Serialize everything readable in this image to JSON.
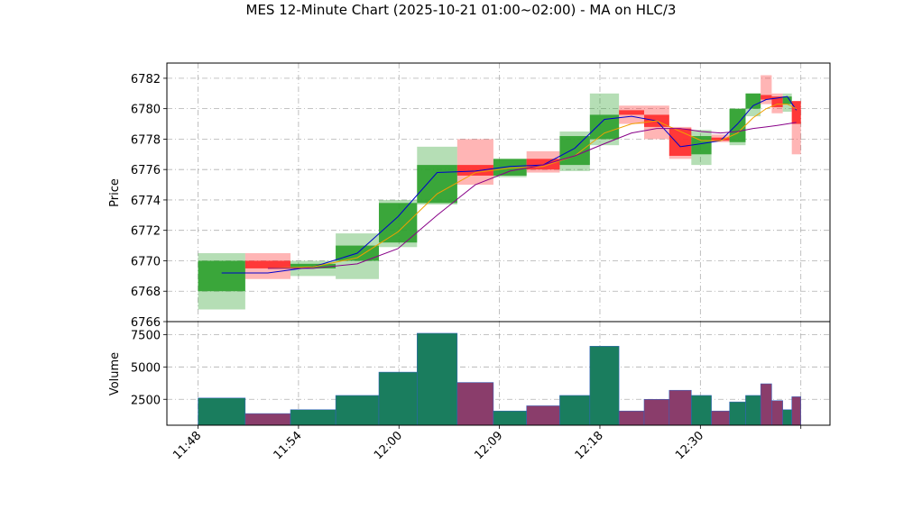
{
  "chart_data": {
    "type": "candlestick",
    "title": "MES 12-Minute Chart (2025-10-21 01:00~02:00) - MA on HLC/3",
    "grid": true,
    "x_edges": [
      0,
      0.47,
      0.92,
      1.37,
      1.8,
      2.18,
      2.58,
      2.94,
      3.27,
      3.6,
      3.9,
      4.19,
      4.44,
      4.69,
      4.91,
      5.11,
      5.29,
      5.45,
      5.6,
      5.71,
      5.82,
      5.91,
      6.0
    ],
    "xlim": [
      -0.31,
      6.29
    ],
    "xticks": [
      {
        "value": 0,
        "label": "11:48"
      },
      {
        "value": 1,
        "label": "11:54"
      },
      {
        "value": 2,
        "label": "12:00"
      },
      {
        "value": 3,
        "label": "12:09"
      },
      {
        "value": 4,
        "label": "12:18"
      },
      {
        "value": 5,
        "label": "12:30"
      },
      {
        "value": 6,
        "label": null
      }
    ],
    "price": {
      "ylabel": "Price",
      "ylim": [
        6766,
        6783
      ],
      "yticks": [
        6766,
        6768,
        6770,
        6772,
        6774,
        6776,
        6778,
        6780,
        6782
      ],
      "up_color": "#2ca02c",
      "down_color": "#ff2a2a",
      "open": [
        6768.0,
        6770.0,
        6769.5,
        6770.0,
        6771.2,
        6773.8,
        6776.3,
        6775.6,
        6776.7,
        6776.3,
        6778.0,
        6779.9,
        6779.6,
        6778.7,
        6777.0,
        6778.1,
        6777.8,
        6780.0,
        6780.9,
        6780.8,
        6780.3,
        6780.5
      ],
      "high": [
        6770.5,
        6770.5,
        6770.0,
        6771.8,
        6774.0,
        6777.5,
        6778.0,
        6776.7,
        6777.2,
        6778.5,
        6781.0,
        6780.2,
        6780.2,
        6778.8,
        6778.6,
        6778.3,
        6780.0,
        6781.0,
        6782.2,
        6781.0,
        6781.0,
        6780.5
      ],
      "low": [
        6766.8,
        6768.8,
        6769.0,
        6768.8,
        6770.9,
        6773.7,
        6775.0,
        6775.5,
        6775.8,
        6775.9,
        6777.6,
        6779.0,
        6778.0,
        6776.7,
        6776.3,
        6777.8,
        6777.6,
        6779.5,
        6780.3,
        6779.7,
        6779.8,
        6777.0
      ],
      "close": [
        6770.0,
        6769.5,
        6769.8,
        6771.0,
        6773.8,
        6776.3,
        6775.6,
        6776.7,
        6776.0,
        6778.2,
        6779.6,
        6779.6,
        6778.8,
        6776.9,
        6778.2,
        6777.9,
        6780.0,
        6781.0,
        6780.6,
        6780.1,
        6780.8,
        6779.0
      ],
      "series": [
        {
          "color": "#0000cc",
          "values": [
            6769.2,
            6769.2,
            6769.6,
            6770.5,
            6772.9,
            6775.8,
            6775.9,
            6776.2,
            6776.3,
            6777.4,
            6779.3,
            6779.5,
            6779.2,
            6777.5,
            6777.7,
            6777.9,
            6779.0,
            6780.2,
            6780.6,
            6780.7,
            6780.8,
            6779.9
          ]
        },
        {
          "color": "#f0a000",
          "values": [
            null,
            6769.5,
            6769.6,
            6770.2,
            6771.9,
            6774.4,
            6775.8,
            6776.1,
            6776.2,
            6776.9,
            6778.4,
            6779.0,
            6779.2,
            6778.5,
            6777.9,
            6777.9,
            6778.4,
            6779.4,
            6780.0,
            6780.3,
            6780.3,
            6780.0
          ]
        },
        {
          "color": "#880088",
          "values": [
            null,
            6769.5,
            6769.5,
            6769.8,
            6770.8,
            6773.0,
            6775.0,
            6775.9,
            6776.3,
            6776.9,
            6777.7,
            6778.4,
            6778.7,
            6778.7,
            6778.5,
            6778.4,
            6778.5,
            6778.7,
            6778.8,
            6778.9,
            6779.0,
            6779.1
          ]
        }
      ]
    },
    "volume": {
      "ylabel": "Volume",
      "ylim": [
        500,
        8500
      ],
      "yticks": [
        2500,
        5000,
        7500
      ],
      "up_color": "#1a7d5e",
      "down_color": "#8a3d6b",
      "values": [
        2600,
        1400,
        1700,
        2800,
        4600,
        7600,
        3800,
        1600,
        2000,
        2800,
        6600,
        1600,
        2500,
        3200,
        2800,
        1600,
        2300,
        2800,
        3700,
        2400,
        1700,
        2700
      ]
    }
  }
}
